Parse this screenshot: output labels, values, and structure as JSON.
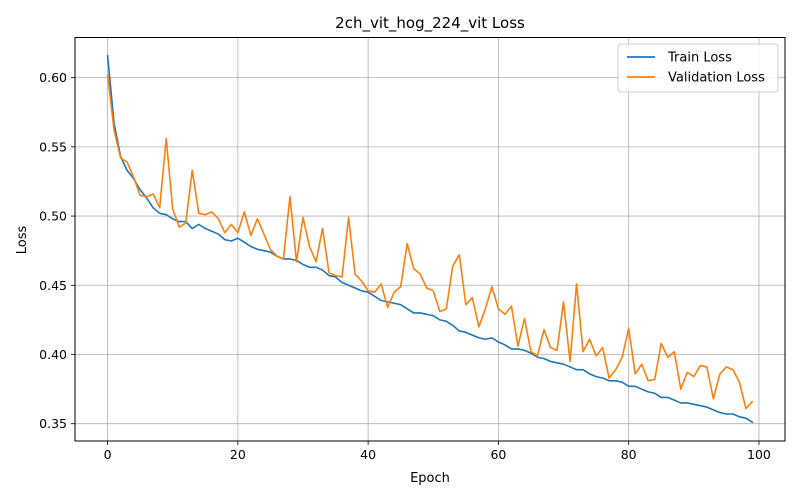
{
  "chart_data": {
    "type": "line",
    "title": "2ch_vit_hog_224_vit Loss",
    "xlabel": "Epoch",
    "ylabel": "Loss",
    "xlim": [
      -5,
      104
    ],
    "ylim": [
      0.3375,
      0.629
    ],
    "xticks": [
      0,
      20,
      40,
      60,
      80,
      100
    ],
    "yticks": [
      0.35,
      0.4,
      0.45,
      0.5,
      0.55,
      0.6
    ],
    "xtick_labels": [
      "0",
      "20",
      "40",
      "60",
      "80",
      "100"
    ],
    "ytick_labels": [
      "0.35",
      "0.40",
      "0.45",
      "0.50",
      "0.55",
      "0.60"
    ],
    "grid": true,
    "legend_position": "top-right",
    "series": [
      {
        "name": "Train Loss",
        "color": "#1f77b4",
        "x": [
          0,
          1,
          2,
          3,
          4,
          5,
          6,
          7,
          8,
          9,
          10,
          11,
          12,
          13,
          14,
          15,
          16,
          17,
          18,
          19,
          20,
          21,
          22,
          23,
          24,
          25,
          26,
          27,
          28,
          29,
          30,
          31,
          32,
          33,
          34,
          35,
          36,
          37,
          38,
          39,
          40,
          41,
          42,
          43,
          44,
          45,
          46,
          47,
          48,
          49,
          50,
          51,
          52,
          53,
          54,
          55,
          56,
          57,
          58,
          59,
          60,
          61,
          62,
          63,
          64,
          65,
          66,
          67,
          68,
          69,
          70,
          71,
          72,
          73,
          74,
          75,
          76,
          77,
          78,
          79,
          80,
          81,
          82,
          83,
          84,
          85,
          86,
          87,
          88,
          89,
          90,
          91,
          92,
          93,
          94,
          95,
          96,
          97,
          98,
          99
        ],
        "values": [
          0.616,
          0.567,
          0.543,
          0.533,
          0.527,
          0.519,
          0.513,
          0.506,
          0.502,
          0.501,
          0.498,
          0.496,
          0.496,
          0.491,
          0.494,
          0.491,
          0.489,
          0.487,
          0.483,
          0.482,
          0.484,
          0.481,
          0.478,
          0.476,
          0.475,
          0.474,
          0.471,
          0.469,
          0.469,
          0.468,
          0.465,
          0.463,
          0.463,
          0.461,
          0.457,
          0.456,
          0.452,
          0.45,
          0.448,
          0.446,
          0.445,
          0.442,
          0.439,
          0.438,
          0.437,
          0.436,
          0.433,
          0.43,
          0.43,
          0.429,
          0.428,
          0.425,
          0.424,
          0.421,
          0.417,
          0.416,
          0.414,
          0.412,
          0.411,
          0.412,
          0.409,
          0.407,
          0.404,
          0.404,
          0.403,
          0.401,
          0.398,
          0.397,
          0.395,
          0.394,
          0.393,
          0.391,
          0.389,
          0.389,
          0.386,
          0.384,
          0.383,
          0.381,
          0.381,
          0.38,
          0.377,
          0.377,
          0.375,
          0.373,
          0.372,
          0.369,
          0.369,
          0.367,
          0.365,
          0.365,
          0.364,
          0.363,
          0.362,
          0.36,
          0.358,
          0.357,
          0.357,
          0.355,
          0.354,
          0.351
        ]
      },
      {
        "name": "Validation Loss",
        "color": "#ff7f0e",
        "x": [
          0,
          1,
          2,
          3,
          4,
          5,
          6,
          7,
          8,
          9,
          10,
          11,
          12,
          13,
          14,
          15,
          16,
          17,
          18,
          19,
          20,
          21,
          22,
          23,
          24,
          25,
          26,
          27,
          28,
          29,
          30,
          31,
          32,
          33,
          34,
          35,
          36,
          37,
          38,
          39,
          40,
          41,
          42,
          43,
          44,
          45,
          46,
          47,
          48,
          49,
          50,
          51,
          52,
          53,
          54,
          55,
          56,
          57,
          58,
          59,
          60,
          61,
          62,
          63,
          64,
          65,
          66,
          67,
          68,
          69,
          70,
          71,
          72,
          73,
          74,
          75,
          76,
          77,
          78,
          79,
          80,
          81,
          82,
          83,
          84,
          85,
          86,
          87,
          88,
          89,
          90,
          91,
          92,
          93,
          94,
          95,
          96,
          97,
          98,
          99
        ],
        "values": [
          0.602,
          0.562,
          0.542,
          0.539,
          0.528,
          0.515,
          0.514,
          0.516,
          0.506,
          0.556,
          0.505,
          0.492,
          0.495,
          0.533,
          0.502,
          0.501,
          0.503,
          0.498,
          0.488,
          0.494,
          0.488,
          0.503,
          0.486,
          0.498,
          0.487,
          0.476,
          0.471,
          0.469,
          0.514,
          0.467,
          0.499,
          0.478,
          0.467,
          0.491,
          0.459,
          0.457,
          0.456,
          0.499,
          0.458,
          0.453,
          0.446,
          0.445,
          0.451,
          0.434,
          0.445,
          0.449,
          0.48,
          0.462,
          0.458,
          0.448,
          0.446,
          0.431,
          0.433,
          0.464,
          0.472,
          0.436,
          0.441,
          0.42,
          0.433,
          0.449,
          0.433,
          0.429,
          0.435,
          0.406,
          0.426,
          0.402,
          0.399,
          0.418,
          0.405,
          0.403,
          0.438,
          0.395,
          0.451,
          0.402,
          0.411,
          0.399,
          0.405,
          0.383,
          0.389,
          0.398,
          0.419,
          0.386,
          0.393,
          0.381,
          0.382,
          0.408,
          0.398,
          0.402,
          0.375,
          0.387,
          0.384,
          0.392,
          0.391,
          0.368,
          0.386,
          0.391,
          0.389,
          0.38,
          0.361,
          0.366
        ]
      }
    ]
  }
}
